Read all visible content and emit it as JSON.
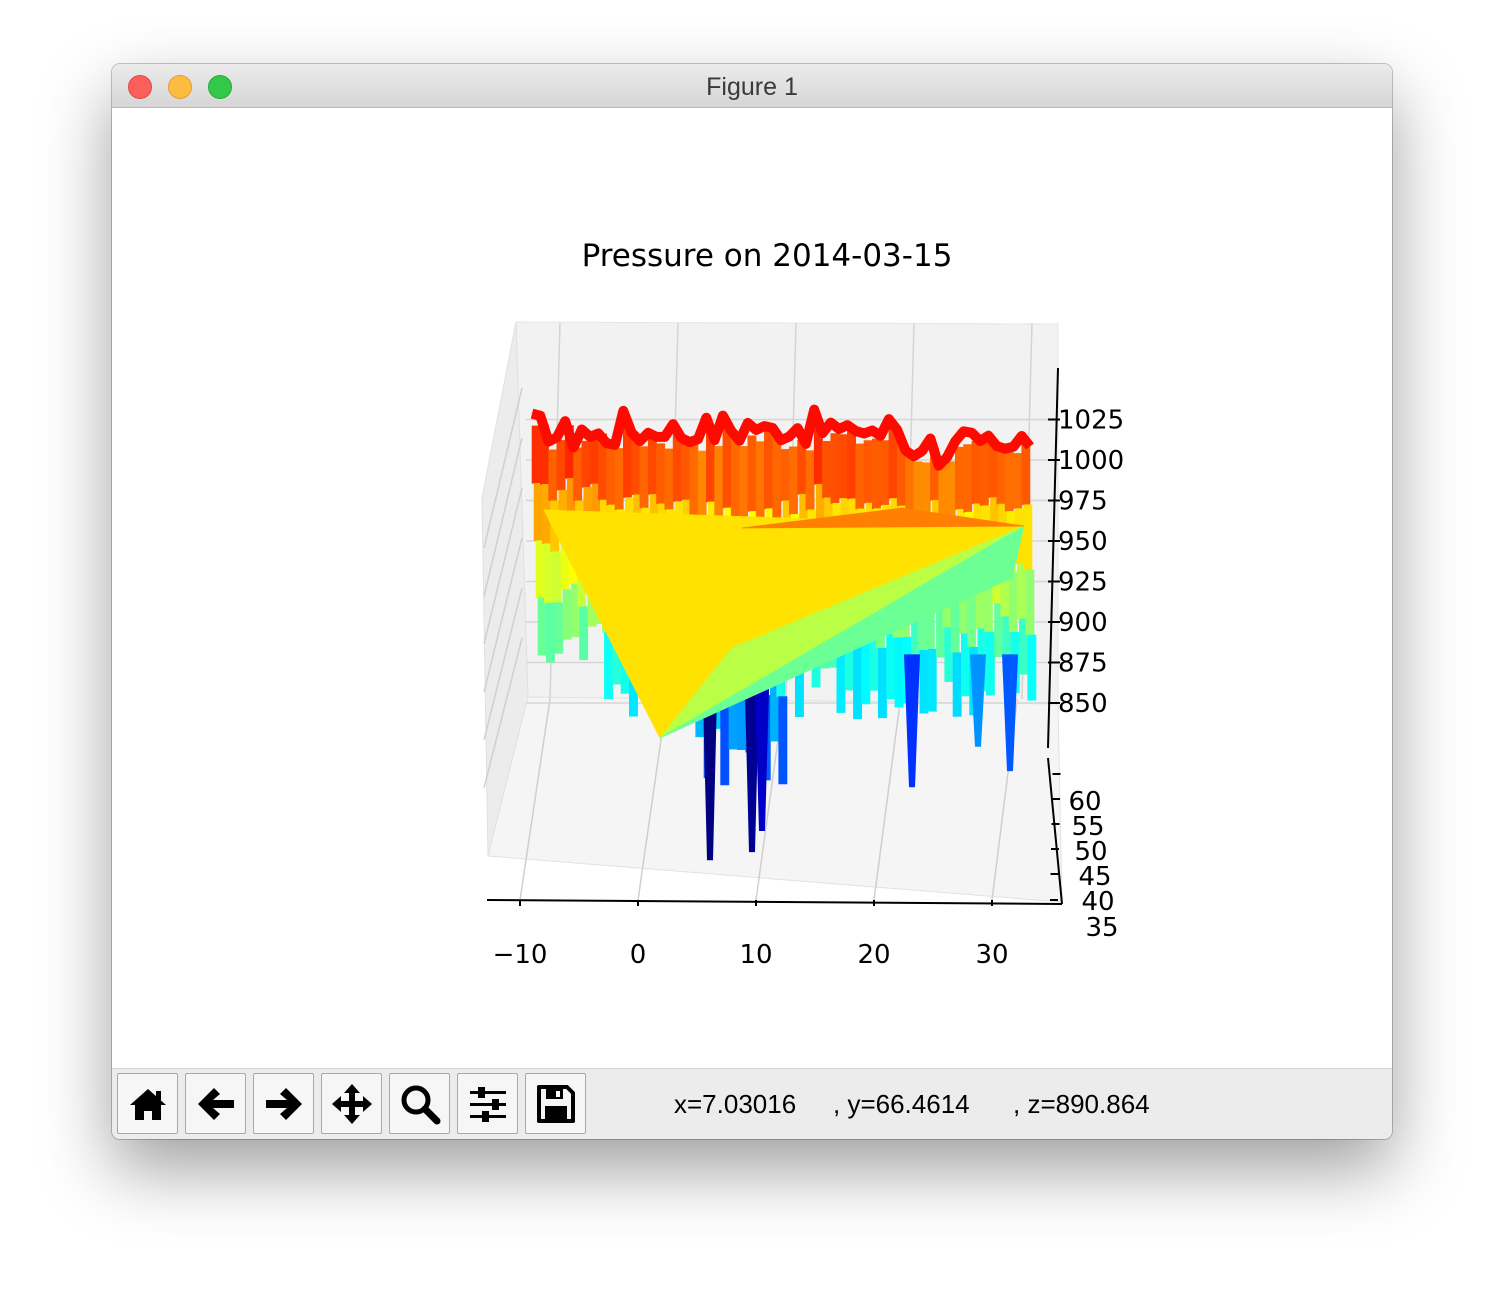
{
  "window": {
    "title": "Figure 1"
  },
  "chart_data": {
    "type": "surface3d",
    "title": "Pressure on 2014-03-15",
    "colormap": "jet",
    "xlabel": "",
    "ylabel": "",
    "zlabel": "",
    "x_ticks": [
      "−10",
      "0",
      "10",
      "20",
      "30"
    ],
    "y_ticks": [
      "35",
      "40",
      "45",
      "50",
      "55",
      "60"
    ],
    "z_ticks": [
      "850",
      "875",
      "900",
      "925",
      "950",
      "975",
      "1000",
      "1025"
    ],
    "xlim": [
      -13,
      35
    ],
    "ylim": [
      35,
      62
    ],
    "zlim": [
      790,
      1050
    ],
    "grid": true
  },
  "toolbar": {
    "buttons": [
      {
        "name": "home-button",
        "icon": "home-icon",
        "tooltip": "Reset original view"
      },
      {
        "name": "back-button",
        "icon": "arrow-left-icon",
        "tooltip": "Back to previous view"
      },
      {
        "name": "forward-button",
        "icon": "arrow-right-icon",
        "tooltip": "Forward to next view"
      },
      {
        "name": "pan-button",
        "icon": "move-icon",
        "tooltip": "Pan axes"
      },
      {
        "name": "zoom-button",
        "icon": "magnifier-icon",
        "tooltip": "Zoom to rectangle"
      },
      {
        "name": "configure-button",
        "icon": "sliders-icon",
        "tooltip": "Configure subplots"
      },
      {
        "name": "save-button",
        "icon": "floppy-icon",
        "tooltip": "Save the figure"
      }
    ],
    "coords": {
      "x": "x=7.03016",
      "y": ", y=66.4614",
      "z": ", z=890.864"
    }
  }
}
